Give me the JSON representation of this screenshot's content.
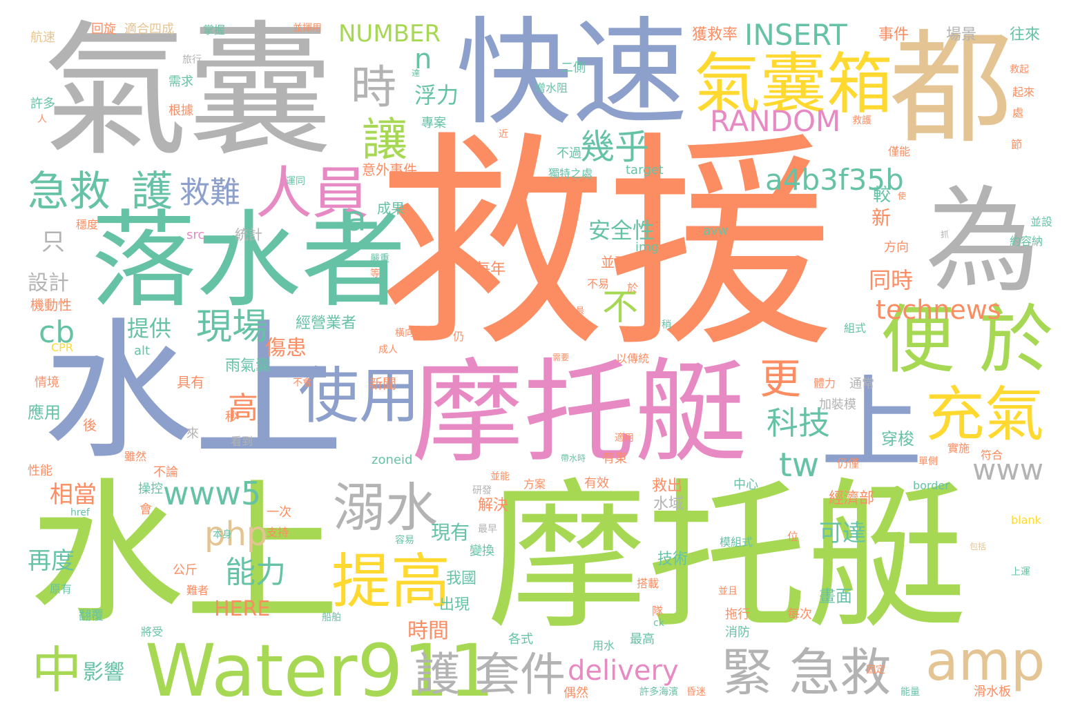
{
  "palette": {
    "orange": "#fc8d62",
    "green": "#a6d854",
    "teal": "#66c2a5",
    "blue": "#8da0cb",
    "pink": "#e78ac3",
    "gray": "#b3b3b3",
    "yellow": "#ffd92f",
    "tan": "#e5c494"
  },
  "words": [
    {
      "text": "救援",
      "color": "orange"
    },
    {
      "text": "水上",
      "color": "green"
    },
    {
      "text": "摩托艇",
      "color": "green"
    },
    {
      "text": "摩托艇",
      "color": "pink"
    },
    {
      "text": "水上",
      "color": "blue"
    },
    {
      "text": "氣囊",
      "color": "gray"
    },
    {
      "text": "快速",
      "color": "blue"
    },
    {
      "text": "都",
      "color": "tan"
    },
    {
      "text": "為",
      "color": "gray"
    },
    {
      "text": "落水者",
      "color": "teal"
    },
    {
      "text": "氣囊箱",
      "color": "yellow"
    },
    {
      "text": "上",
      "color": "blue"
    },
    {
      "text": "便 於",
      "color": "green"
    },
    {
      "text": "Water911",
      "color": "green"
    },
    {
      "text": "人員",
      "color": "pink"
    },
    {
      "text": "使用",
      "color": "blue"
    },
    {
      "text": "溺水",
      "color": "gray"
    },
    {
      "text": "提高",
      "color": "yellow"
    },
    {
      "text": "充氣",
      "color": "yellow"
    },
    {
      "text": "amp",
      "color": "tan"
    },
    {
      "text": "緊 急救",
      "color": "gray"
    },
    {
      "text": "護 套件",
      "color": "gray"
    },
    {
      "text": "INSERT",
      "color": "teal"
    },
    {
      "text": "RANDOM",
      "color": "pink"
    },
    {
      "text": "NUMBER",
      "color": "green"
    },
    {
      "text": "急救",
      "color": "teal"
    },
    {
      "text": "護",
      "color": "teal"
    },
    {
      "text": "救難",
      "color": "blue"
    },
    {
      "text": "時",
      "color": "gray"
    },
    {
      "text": "讓",
      "color": "green"
    },
    {
      "text": "幾乎",
      "color": "teal"
    },
    {
      "text": "a4b3f35b",
      "color": "teal"
    },
    {
      "text": "technews",
      "color": "orange"
    },
    {
      "text": "www5",
      "color": "teal"
    },
    {
      "text": "現場",
      "color": "teal"
    },
    {
      "text": "更",
      "color": "orange"
    },
    {
      "text": "科技",
      "color": "teal"
    },
    {
      "text": "www",
      "color": "gray"
    },
    {
      "text": "tw",
      "color": "teal"
    },
    {
      "text": "中",
      "color": "green"
    },
    {
      "text": "delivery",
      "color": "pink"
    },
    {
      "text": "能力",
      "color": "teal"
    },
    {
      "text": "php",
      "color": "tan"
    },
    {
      "text": "cb",
      "color": "teal"
    },
    {
      "text": "不",
      "color": "green"
    },
    {
      "text": "高",
      "color": "orange"
    },
    {
      "text": "安全性",
      "color": "teal"
    },
    {
      "text": "可達",
      "color": "teal"
    },
    {
      "text": "同時",
      "color": "orange"
    },
    {
      "text": "浮力",
      "color": "teal"
    },
    {
      "text": "n",
      "color": "teal"
    },
    {
      "text": "a",
      "color": "teal"
    },
    {
      "text": "HERE",
      "color": "orange"
    },
    {
      "text": "影響",
      "color": "teal"
    },
    {
      "text": "時間",
      "color": "orange"
    },
    {
      "text": "提供",
      "color": "teal"
    },
    {
      "text": "傷患",
      "color": "orange"
    },
    {
      "text": "相當",
      "color": "orange"
    },
    {
      "text": "再度",
      "color": "teal"
    },
    {
      "text": "設計",
      "color": "gray"
    },
    {
      "text": "只",
      "color": "gray"
    },
    {
      "text": "機動性",
      "color": "orange"
    },
    {
      "text": "經營業者",
      "color": "teal"
    },
    {
      "text": "救出",
      "color": "orange"
    },
    {
      "text": "水域",
      "color": "gray"
    },
    {
      "text": "解決",
      "color": "orange"
    },
    {
      "text": "我國",
      "color": "teal"
    },
    {
      "text": "出現",
      "color": "teal"
    },
    {
      "text": "經濟部",
      "color": "orange"
    },
    {
      "text": "畫面",
      "color": "teal"
    },
    {
      "text": "技術",
      "color": "teal"
    },
    {
      "text": "穿梭",
      "color": "teal"
    },
    {
      "text": "新",
      "color": "orange"
    },
    {
      "text": "較",
      "color": "teal"
    },
    {
      "text": "每年",
      "color": "orange"
    },
    {
      "text": "意外事件",
      "color": "orange"
    },
    {
      "text": "成果",
      "color": "teal"
    },
    {
      "text": "專案",
      "color": "teal"
    },
    {
      "text": "獨特之處",
      "color": "teal"
    },
    {
      "text": "增水阻",
      "color": "teal"
    },
    {
      "text": "獲救率",
      "color": "orange"
    },
    {
      "text": "事件",
      "color": "orange"
    },
    {
      "text": "場景",
      "color": "gray"
    },
    {
      "text": "往來",
      "color": "teal"
    },
    {
      "text": "航速",
      "color": "tan"
    },
    {
      "text": "回旋",
      "color": "orange"
    },
    {
      "text": "適合四成",
      "color": "tan"
    },
    {
      "text": "掌握",
      "color": "teal"
    },
    {
      "text": "並揮用",
      "color": "orange"
    },
    {
      "text": "旅行",
      "color": "gray"
    },
    {
      "text": "需求",
      "color": "teal"
    },
    {
      "text": "根據",
      "color": "orange"
    },
    {
      "text": "許多",
      "color": "teal"
    },
    {
      "text": "人",
      "color": "orange"
    },
    {
      "text": "運同",
      "color": "teal"
    },
    {
      "text": "穩度",
      "color": "orange"
    },
    {
      "text": "統計",
      "color": "gray"
    },
    {
      "text": "src",
      "color": "pink"
    },
    {
      "text": "img",
      "color": "teal"
    },
    {
      "text": "avw",
      "color": "teal"
    },
    {
      "text": "target",
      "color": "teal"
    },
    {
      "text": "alt",
      "color": "teal"
    },
    {
      "text": "CPR",
      "color": "yellow"
    },
    {
      "text": "情境",
      "color": "orange"
    },
    {
      "text": "具有",
      "color": "orange"
    },
    {
      "text": "新聞",
      "color": "orange"
    },
    {
      "text": "應用",
      "color": "teal"
    },
    {
      "text": "後",
      "color": "orange"
    },
    {
      "text": "來",
      "color": "gray"
    },
    {
      "text": "看到",
      "color": "gray"
    },
    {
      "text": "雖然",
      "color": "orange"
    },
    {
      "text": "性能",
      "color": "orange"
    },
    {
      "text": "不論",
      "color": "orange"
    },
    {
      "text": "zoneid",
      "color": "teal"
    },
    {
      "text": "操控",
      "color": "teal"
    },
    {
      "text": "會",
      "color": "orange"
    },
    {
      "text": "href",
      "color": "teal"
    },
    {
      "text": "一次",
      "color": "orange"
    },
    {
      "text": "支持",
      "color": "orange"
    },
    {
      "text": "本身",
      "color": "teal"
    },
    {
      "text": "公斤",
      "color": "orange"
    },
    {
      "text": "難者",
      "color": "orange"
    },
    {
      "text": "原有",
      "color": "teal"
    },
    {
      "text": "翻覆",
      "color": "teal"
    },
    {
      "text": "將受",
      "color": "teal"
    },
    {
      "text": "船舶",
      "color": "teal"
    },
    {
      "text": "各式",
      "color": "teal"
    },
    {
      "text": "用水",
      "color": "teal"
    },
    {
      "text": "最高",
      "color": "teal"
    },
    {
      "text": "偶然",
      "color": "orange"
    },
    {
      "text": "許多海濱",
      "color": "teal"
    },
    {
      "text": "昏迷",
      "color": "orange"
    },
    {
      "text": "固定",
      "color": "orange"
    },
    {
      "text": "能量",
      "color": "teal"
    },
    {
      "text": "滑水板",
      "color": "orange"
    },
    {
      "text": "拖行",
      "color": "orange"
    },
    {
      "text": "消防",
      "color": "teal"
    },
    {
      "text": "每次",
      "color": "orange"
    },
    {
      "text": "搭載",
      "color": "orange"
    },
    {
      "text": "並且",
      "color": "orange"
    },
    {
      "text": "模組式",
      "color": "teal"
    },
    {
      "text": "加裝模",
      "color": "gray"
    },
    {
      "text": "通常",
      "color": "gray"
    },
    {
      "text": "實施",
      "color": "orange"
    },
    {
      "text": "符合",
      "color": "orange"
    },
    {
      "text": "border",
      "color": "teal"
    },
    {
      "text": "blank",
      "color": "yellow"
    },
    {
      "text": "上運",
      "color": "teal"
    },
    {
      "text": "中心",
      "color": "teal"
    },
    {
      "text": "有效",
      "color": "orange"
    },
    {
      "text": "方案",
      "color": "orange"
    },
    {
      "text": "並能",
      "color": "orange"
    },
    {
      "text": "研發",
      "color": "gray"
    },
    {
      "text": "最早",
      "color": "gray"
    },
    {
      "text": "變換",
      "color": "teal"
    },
    {
      "text": "容易",
      "color": "teal"
    },
    {
      "text": "現有",
      "color": "teal"
    },
    {
      "text": "位",
      "color": "orange"
    },
    {
      "text": "包括",
      "color": "tan"
    },
    {
      "text": "有東",
      "color": "orange"
    },
    {
      "text": "以傳統",
      "color": "orange"
    },
    {
      "text": "適用",
      "color": "orange"
    },
    {
      "text": "組式",
      "color": "teal"
    },
    {
      "text": "體力",
      "color": "orange"
    },
    {
      "text": "仍僅",
      "color": "orange"
    },
    {
      "text": "單側",
      "color": "orange"
    },
    {
      "text": "約容納",
      "color": "teal"
    },
    {
      "text": "方向",
      "color": "orange"
    },
    {
      "text": "不過",
      "color": "teal"
    },
    {
      "text": "近",
      "color": "orange"
    },
    {
      "text": "救護",
      "color": "orange"
    },
    {
      "text": "救起",
      "color": "orange"
    },
    {
      "text": "起來",
      "color": "orange"
    },
    {
      "text": "處",
      "color": "orange"
    },
    {
      "text": "節",
      "color": "orange"
    },
    {
      "text": "僅能",
      "color": "orange"
    },
    {
      "text": "使",
      "color": "orange"
    },
    {
      "text": "並設",
      "color": "teal"
    },
    {
      "text": "抓",
      "color": "gray"
    },
    {
      "text": "雨氣囊",
      "color": "teal"
    },
    {
      "text": "於",
      "color": "orange"
    },
    {
      "text": "緊",
      "color": "orange"
    },
    {
      "text": "不易",
      "color": "orange"
    },
    {
      "text": "並不",
      "color": "orange"
    },
    {
      "text": "仍",
      "color": "orange"
    },
    {
      "text": "橫向",
      "color": "orange"
    },
    {
      "text": "成人",
      "color": "orange"
    },
    {
      "text": "稍",
      "color": "teal"
    },
    {
      "text": "最",
      "color": "orange"
    },
    {
      "text": "需要",
      "color": "orange"
    },
    {
      "text": "帶水時",
      "color": "teal"
    },
    {
      "text": "嚴重",
      "color": "teal"
    },
    {
      "text": "等",
      "color": "orange"
    },
    {
      "text": "二側",
      "color": "teal"
    },
    {
      "text": "達",
      "color": "teal"
    },
    {
      "text": "秒",
      "color": "orange"
    },
    {
      "text": "隊",
      "color": "orange"
    },
    {
      "text": "ck",
      "color": "teal"
    },
    {
      "text": "不會",
      "color": "orange"
    },
    {
      "text": "搶救",
      "color": "gray"
    }
  ]
}
